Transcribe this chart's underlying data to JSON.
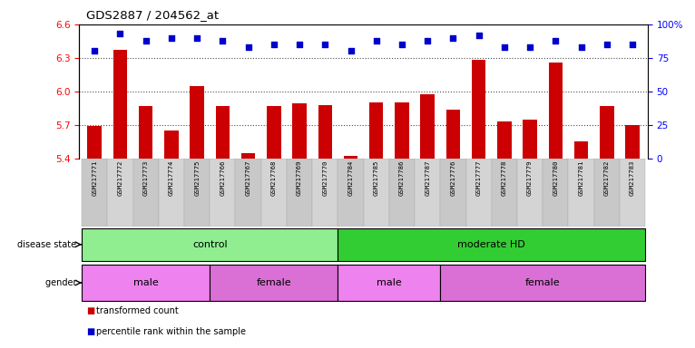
{
  "title": "GDS2887 / 204562_at",
  "samples": [
    "GSM217771",
    "GSM217772",
    "GSM217773",
    "GSM217774",
    "GSM217775",
    "GSM217766",
    "GSM217767",
    "GSM217768",
    "GSM217769",
    "GSM217770",
    "GSM217784",
    "GSM217785",
    "GSM217786",
    "GSM217787",
    "GSM217776",
    "GSM217777",
    "GSM217778",
    "GSM217779",
    "GSM217780",
    "GSM217781",
    "GSM217782",
    "GSM217783"
  ],
  "transformed_count": [
    5.69,
    6.37,
    5.87,
    5.65,
    6.05,
    5.87,
    5.45,
    5.87,
    5.89,
    5.88,
    5.42,
    5.9,
    5.9,
    5.97,
    5.84,
    6.28,
    5.73,
    5.75,
    6.26,
    5.55,
    5.87,
    5.7
  ],
  "percentile_rank": [
    80,
    93,
    88,
    90,
    90,
    88,
    83,
    85,
    85,
    85,
    80,
    88,
    85,
    88,
    90,
    92,
    83,
    83,
    88,
    83,
    85,
    85
  ],
  "ylim_left": [
    5.4,
    6.6
  ],
  "ylim_right": [
    0,
    100
  ],
  "yticks_left": [
    5.4,
    5.7,
    6.0,
    6.3,
    6.6
  ],
  "yticks_right": [
    0,
    25,
    50,
    75,
    100
  ],
  "bar_color": "#cc0000",
  "dot_color": "#0000cc",
  "control_color": "#90ee90",
  "moderate_hd_color": "#32cd32",
  "male_color": "#ee82ee",
  "female_color": "#da70d6",
  "control_range": [
    0,
    9
  ],
  "moderate_hd_range": [
    10,
    21
  ],
  "male1_range": [
    0,
    4
  ],
  "female1_range": [
    5,
    9
  ],
  "male2_range": [
    10,
    13
  ],
  "female2_range": [
    14,
    21
  ],
  "legend_items": [
    "transformed count",
    "percentile rank within the sample"
  ],
  "legend_colors": [
    "#cc0000",
    "#0000cc"
  ]
}
